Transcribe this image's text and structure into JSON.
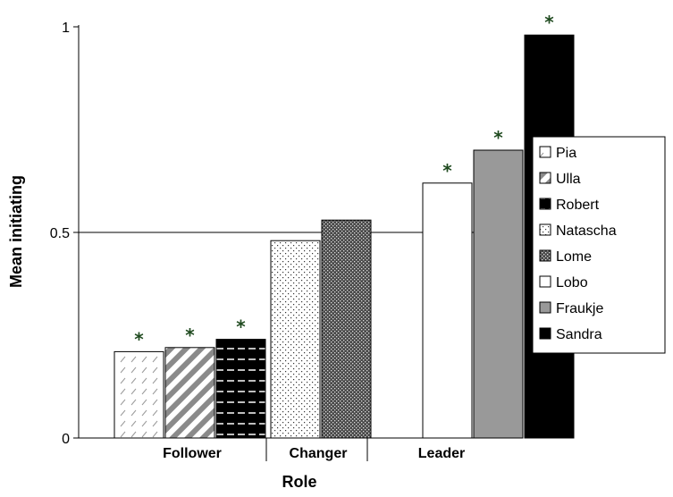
{
  "chart_data": {
    "type": "bar",
    "xlabel": "Role",
    "ylabel": "Mean initiating",
    "ylim": [
      0,
      1
    ],
    "yticks": [
      {
        "value": 0,
        "label": "0"
      },
      {
        "value": 0.5,
        "label": "0.5"
      },
      {
        "value": 1,
        "label": "1"
      }
    ],
    "reference_line": 0.5,
    "groups": [
      {
        "label": "Follower",
        "members": [
          "Pia",
          "Ulla",
          "Robert"
        ]
      },
      {
        "label": "Changer",
        "members": [
          "Natascha",
          "Lome"
        ]
      },
      {
        "label": "Leader",
        "members": [
          "Lobo",
          "Fraukje",
          "Sandra"
        ]
      }
    ],
    "series": [
      {
        "name": "Pia",
        "value": 0.21,
        "group": "Follower",
        "significant": true,
        "pattern": "pat-pia"
      },
      {
        "name": "Ulla",
        "value": 0.22,
        "group": "Follower",
        "significant": true,
        "pattern": "pat-ulla"
      },
      {
        "name": "Robert",
        "value": 0.24,
        "group": "Follower",
        "significant": true,
        "pattern": "pat-robert"
      },
      {
        "name": "Natascha",
        "value": 0.48,
        "group": "Changer",
        "significant": false,
        "pattern": "pat-natascha"
      },
      {
        "name": "Lome",
        "value": 0.53,
        "group": "Changer",
        "significant": false,
        "pattern": "pat-lome"
      },
      {
        "name": "Lobo",
        "value": 0.62,
        "group": "Leader",
        "significant": true,
        "pattern": "solid-white"
      },
      {
        "name": "Fraukje",
        "value": 0.7,
        "group": "Leader",
        "significant": true,
        "pattern": "solid-gray"
      },
      {
        "name": "Sandra",
        "value": 0.98,
        "group": "Leader",
        "significant": true,
        "pattern": "solid-black"
      }
    ],
    "significance_marker": "*",
    "legend_position": "right",
    "grid": false,
    "colors": {
      "star": "#1f4a1f",
      "gray": "#999999",
      "black": "#000000",
      "white": "#ffffff"
    }
  }
}
